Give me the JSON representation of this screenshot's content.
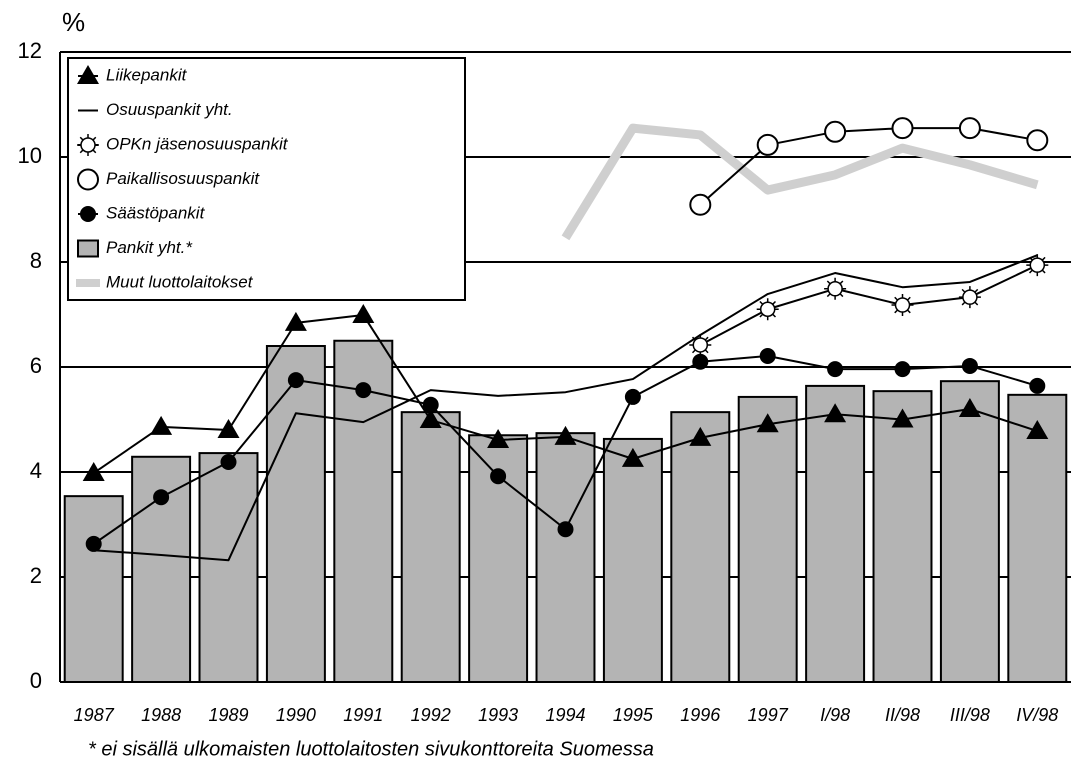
{
  "chart_data": {
    "type": "bar-line",
    "y_label": "%",
    "footnote": "* ei sisällä ulkomaisten luottolaitosten sivukonttoreita Suomessa",
    "categories": [
      "1987",
      "1988",
      "1989",
      "1990",
      "1991",
      "1992",
      "1993",
      "1994",
      "1995",
      "1996",
      "1997",
      "I/98",
      "II/98",
      "III/98",
      "IV/98"
    ],
    "ylim": [
      0,
      12
    ],
    "yticks": [
      0,
      2,
      4,
      6,
      8,
      10,
      12
    ],
    "grid": true,
    "legend": "top-left",
    "series": [
      {
        "name": "Liikepankit",
        "kind": "line",
        "marker": "triangle",
        "color": "#000000",
        "values": [
          3.98,
          4.86,
          4.8,
          6.84,
          6.99,
          4.99,
          4.61,
          4.67,
          4.25,
          4.65,
          4.91,
          5.1,
          5.0,
          5.2,
          4.78
        ]
      },
      {
        "name": "Osuuspankit yht.",
        "kind": "line",
        "marker": "none",
        "color": "#000000",
        "values": [
          2.51,
          2.42,
          2.32,
          5.12,
          4.95,
          5.56,
          5.45,
          5.52,
          5.77,
          6.61,
          7.39,
          7.79,
          7.52,
          7.62,
          8.13
        ]
      },
      {
        "name": "OPKn jäsenosuuspankit",
        "kind": "line",
        "marker": "sun",
        "color": "#000000",
        "values": [
          null,
          null,
          null,
          null,
          null,
          null,
          null,
          null,
          null,
          6.42,
          7.1,
          7.49,
          7.18,
          7.33,
          7.94
        ]
      },
      {
        "name": "Paikallisosuuspankit",
        "kind": "line",
        "marker": "circle-open",
        "color": "#000000",
        "values": [
          null,
          null,
          null,
          null,
          null,
          null,
          null,
          null,
          null,
          9.09,
          10.23,
          10.48,
          10.55,
          10.55,
          10.32
        ]
      },
      {
        "name": "Säästöpankit",
        "kind": "line",
        "marker": "dot",
        "color": "#000000",
        "values": [
          2.63,
          3.52,
          4.19,
          5.75,
          5.56,
          5.28,
          3.92,
          2.91,
          5.43,
          6.1,
          6.21,
          5.96,
          5.96,
          6.02,
          5.64
        ]
      },
      {
        "name": "Pankit yht.*",
        "kind": "bar",
        "marker": "bar",
        "color": "#b4b4b4",
        "values": [
          3.54,
          4.29,
          4.36,
          6.4,
          6.5,
          5.14,
          4.7,
          4.74,
          4.63,
          5.14,
          5.43,
          5.64,
          5.54,
          5.73,
          5.47
        ]
      },
      {
        "name": "Muut luottolaitokset",
        "kind": "band",
        "marker": "band",
        "color": "#cfcfcf",
        "values": [
          null,
          null,
          null,
          null,
          null,
          null,
          null,
          8.46,
          10.55,
          10.42,
          9.37,
          9.66,
          10.17,
          9.85,
          9.47
        ]
      }
    ]
  }
}
